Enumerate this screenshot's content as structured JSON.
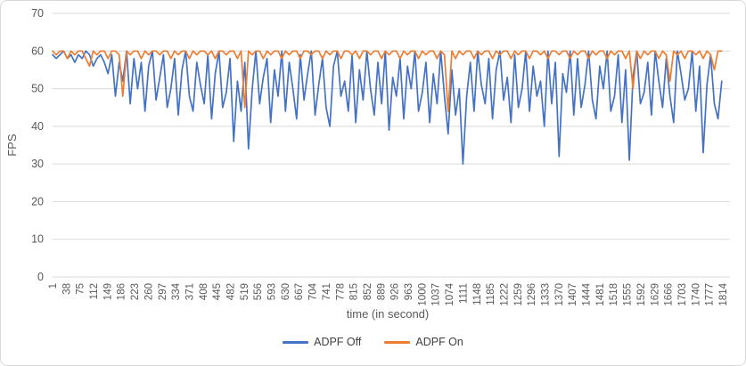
{
  "chart_data": {
    "type": "line",
    "title": "",
    "xlabel": "time (in second)",
    "ylabel": "FPS",
    "grid": true,
    "legend_position": "bottom",
    "ylim": [
      0,
      70
    ],
    "y_ticks": [
      0,
      10,
      20,
      30,
      40,
      50,
      60,
      70
    ],
    "x_start": 1,
    "x_step": 10,
    "x_max": 1814,
    "x_tick_labels": [
      "1",
      "38",
      "75",
      "112",
      "149",
      "186",
      "223",
      "260",
      "297",
      "334",
      "371",
      "408",
      "445",
      "482",
      "519",
      "556",
      "593",
      "630",
      "667",
      "704",
      "741",
      "778",
      "815",
      "852",
      "889",
      "926",
      "963",
      "1000",
      "1037",
      "1074",
      "1111",
      "1148",
      "1185",
      "1222",
      "1259",
      "1296",
      "1333",
      "1370",
      "1407",
      "1444",
      "1481",
      "1518",
      "1555",
      "1592",
      "1629",
      "1666",
      "1703",
      "1740",
      "1777",
      "1814"
    ],
    "series": [
      {
        "name": "ADPF Off",
        "color": "#4472C4",
        "values": [
          59,
          58,
          59,
          60,
          58,
          59,
          57,
          59,
          58,
          60,
          59,
          56,
          58,
          59,
          57,
          54,
          59,
          48,
          57,
          52,
          60,
          46,
          58,
          50,
          57,
          44,
          56,
          60,
          47,
          53,
          59,
          45,
          50,
          58,
          43,
          55,
          60,
          48,
          44,
          57,
          51,
          46,
          59,
          42,
          54,
          60,
          45,
          49,
          58,
          36,
          52,
          44,
          57,
          34,
          50,
          60,
          46,
          53,
          58,
          41,
          55,
          48,
          60,
          44,
          57,
          50,
          42,
          59,
          47,
          54,
          60,
          43,
          51,
          58,
          45,
          40,
          56,
          60,
          48,
          52,
          44,
          59,
          41,
          55,
          47,
          60,
          50,
          43,
          57,
          46,
          60,
          39,
          53,
          48,
          58,
          42,
          56,
          50,
          60,
          44,
          49,
          57,
          41,
          54,
          46,
          60,
          48,
          38,
          55,
          43,
          50,
          30,
          48,
          57,
          44,
          60,
          51,
          46,
          58,
          42,
          55,
          60,
          47,
          53,
          41,
          59,
          45,
          50,
          60,
          44,
          56,
          48,
          52,
          40,
          60,
          46,
          57,
          32,
          54,
          49,
          60,
          43,
          58,
          45,
          51,
          60,
          47,
          42,
          56,
          50,
          60,
          44,
          48,
          59,
          41,
          55,
          31,
          53,
          60,
          46,
          49,
          57,
          43,
          60,
          52,
          45,
          58,
          48,
          41,
          60,
          54,
          47,
          50,
          60,
          44,
          56,
          33,
          51,
          59,
          46,
          42,
          52
        ]
      },
      {
        "name": "ADPF On",
        "color": "#ED7D31",
        "values": [
          60,
          59,
          60,
          60,
          58,
          60,
          59,
          60,
          60,
          58,
          56,
          60,
          59,
          60,
          60,
          58,
          60,
          60,
          59,
          48,
          60,
          59,
          60,
          60,
          58,
          60,
          59,
          60,
          60,
          59,
          60,
          60,
          58,
          60,
          59,
          60,
          60,
          58,
          60,
          59,
          60,
          60,
          59,
          60,
          58,
          60,
          60,
          59,
          60,
          60,
          58,
          60,
          45,
          60,
          59,
          60,
          60,
          58,
          60,
          59,
          60,
          60,
          58,
          60,
          59,
          60,
          60,
          58,
          60,
          60,
          59,
          60,
          60,
          58,
          60,
          59,
          60,
          60,
          58,
          60,
          60,
          59,
          60,
          58,
          60,
          60,
          59,
          60,
          60,
          58,
          60,
          59,
          60,
          60,
          58,
          60,
          59,
          60,
          60,
          58,
          60,
          59,
          60,
          60,
          58,
          60,
          59,
          44,
          60,
          58,
          60,
          59,
          60,
          60,
          58,
          60,
          59,
          60,
          60,
          58,
          60,
          59,
          60,
          60,
          58,
          60,
          59,
          60,
          60,
          58,
          60,
          60,
          59,
          60,
          58,
          60,
          60,
          59,
          60,
          60,
          58,
          60,
          59,
          60,
          60,
          58,
          60,
          59,
          60,
          60,
          58,
          60,
          59,
          60,
          60,
          58,
          60,
          50,
          60,
          58,
          60,
          59,
          60,
          60,
          58,
          60,
          59,
          52,
          60,
          59,
          60,
          58,
          60,
          60,
          59,
          60,
          58,
          60,
          59,
          55,
          60,
          60
        ]
      }
    ],
    "colors": {
      "gridline": "#d9d9d9",
      "axis_text": "#595959",
      "frame_border": "#d9d9d9"
    }
  }
}
